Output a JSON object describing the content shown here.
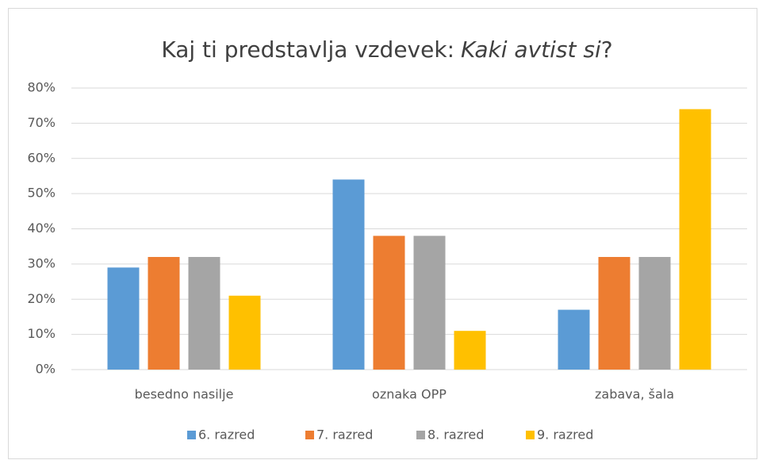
{
  "chart_data": {
    "type": "bar",
    "title": [
      "Kaj ti predstavlja vzdevek:",
      "Kaki avtist si",
      "?"
    ],
    "categories": [
      "besedno nasilje",
      "oznaka OPP",
      "zabava, šala"
    ],
    "series": [
      {
        "name": "6. razred",
        "color": "#5b9bd5",
        "values": [
          29,
          54,
          17
        ]
      },
      {
        "name": "7. razred",
        "color": "#ed7d31",
        "values": [
          32,
          38,
          32
        ]
      },
      {
        "name": "8. razred",
        "color": "#a5a5a5",
        "values": [
          32,
          38,
          32
        ]
      },
      {
        "name": "9. razred",
        "color": "#ffc000",
        "values": [
          21,
          11,
          74
        ]
      }
    ],
    "ylim": [
      0,
      80
    ],
    "yticks": [
      {
        "value": 0,
        "label": "0%"
      },
      {
        "value": 10,
        "label": "10%"
      },
      {
        "value": 20,
        "label": "20%"
      },
      {
        "value": 30,
        "label": "30%"
      },
      {
        "value": 40,
        "label": "40%"
      },
      {
        "value": 50,
        "label": "50%"
      },
      {
        "value": 60,
        "label": "60%"
      },
      {
        "value": 70,
        "label": "70%"
      },
      {
        "value": 80,
        "label": "80%"
      }
    ],
    "grid": true,
    "legend": "bottom"
  }
}
